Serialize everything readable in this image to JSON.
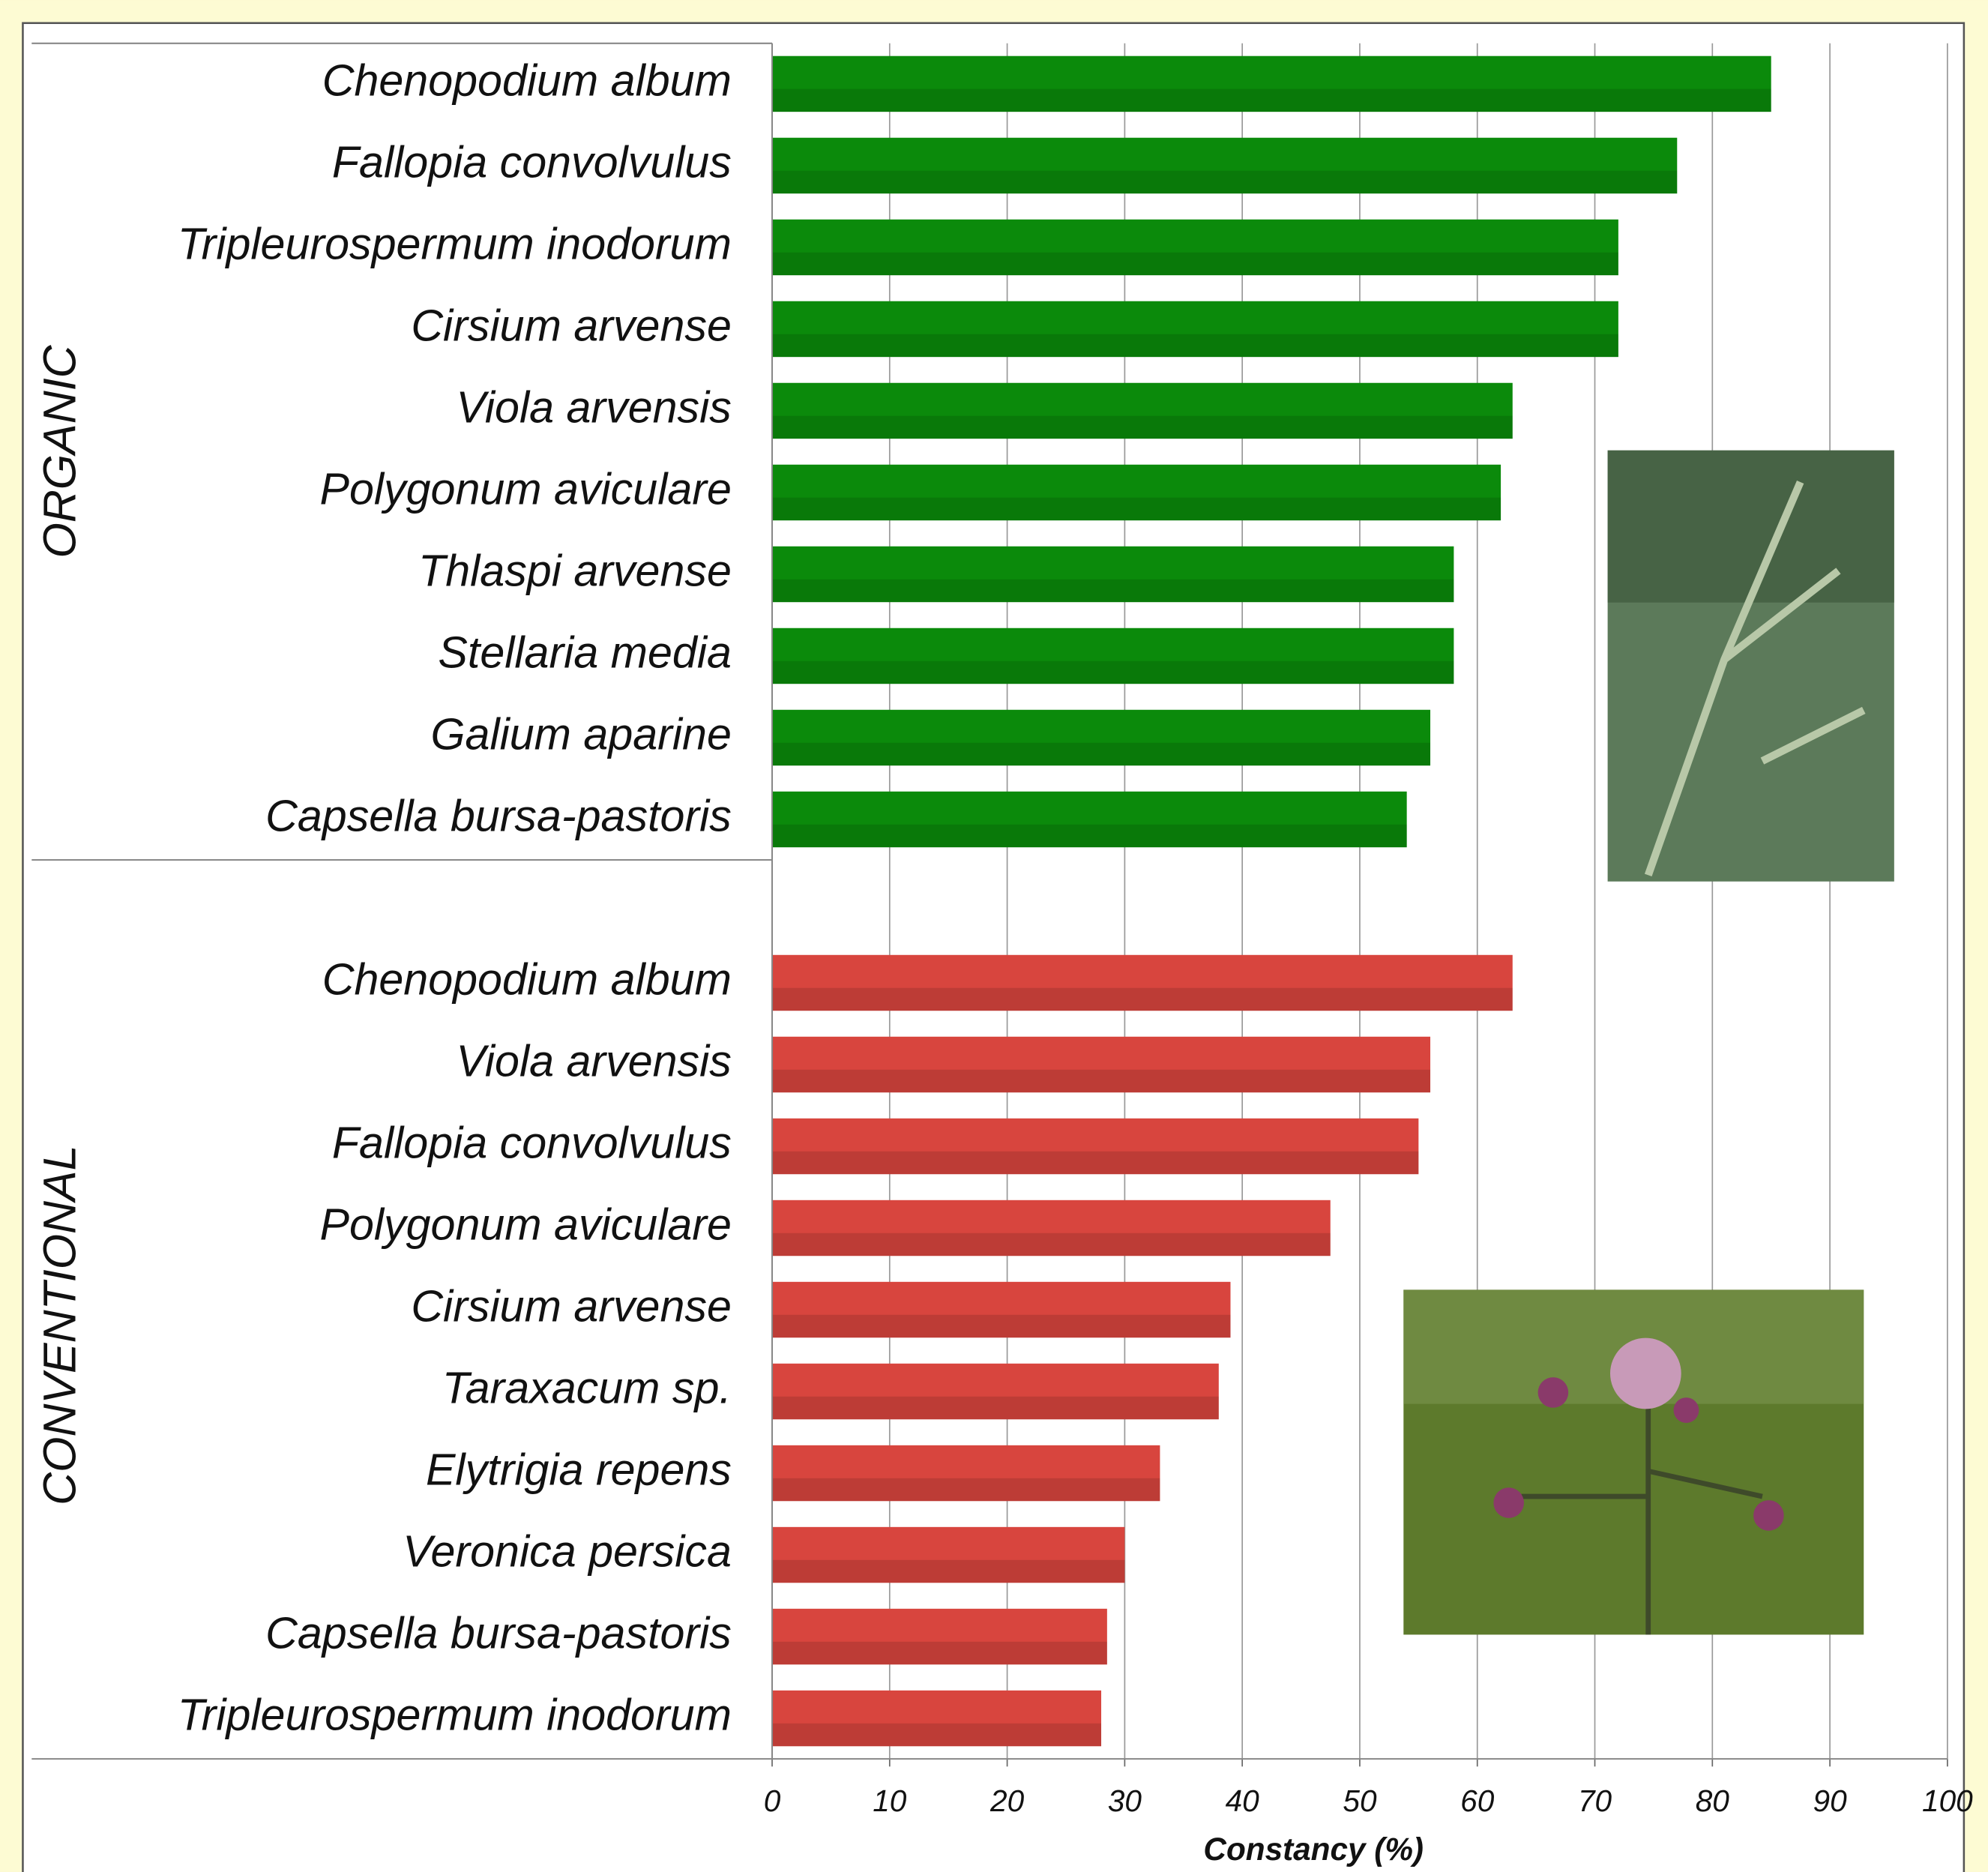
{
  "chart_data": {
    "type": "bar",
    "orientation": "horizontal",
    "x_label": "Constancy (%)",
    "xlim": [
      0,
      100
    ],
    "xticks": [
      0,
      10,
      20,
      30,
      40,
      50,
      60,
      70,
      80,
      90,
      100
    ],
    "grid": true,
    "groups": [
      {
        "name": "ORGANIC",
        "color": "#0b8a0b",
        "categories": [
          "Chenopodium album",
          "Fallopia convolvulus",
          "Tripleurospermum inodorum",
          "Cirsium arvense",
          "Viola arvensis",
          "Polygonum aviculare",
          "Thlaspi arvense",
          "Stellaria media",
          "Galium aparine",
          "Capsella bursa-pastoris"
        ],
        "values": [
          85,
          77,
          72,
          72,
          63,
          62,
          58,
          58,
          56,
          54
        ]
      },
      {
        "name": "CONVENTIONAL",
        "color": "#d8453e",
        "categories": [
          "Chenopodium album",
          "Viola arvensis",
          "Fallopia convolvulus",
          "Polygonum aviculare",
          "Cirsium arvense",
          "Taraxacum sp.",
          "Elytrigia repens",
          "Veronica persica",
          "Capsella bursa-pastoris",
          "Tripleurospermum inodorum"
        ],
        "values": [
          63,
          56,
          55,
          47.5,
          39,
          38,
          33,
          30,
          28.5,
          28
        ]
      }
    ]
  }
}
